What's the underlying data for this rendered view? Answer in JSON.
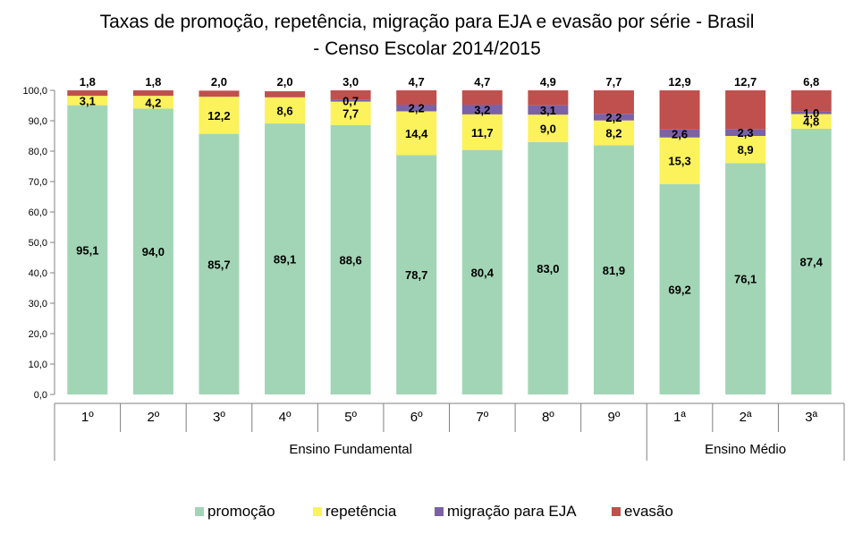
{
  "chart_data": {
    "type": "bar",
    "stacked": true,
    "title_lines": [
      "Taxas de promoção, repetência, migração para EJA e evasão por série - Brasil",
      "- Censo Escolar 2014/2015"
    ],
    "ylim": [
      0,
      100
    ],
    "yticks": [
      "0,0",
      "10,0",
      "20,0",
      "30,0",
      "40,0",
      "50,0",
      "60,0",
      "70,0",
      "80,0",
      "90,0",
      "100,0"
    ],
    "categories": [
      "1º",
      "2º",
      "3º",
      "4º",
      "5º",
      "6º",
      "7º",
      "8º",
      "9º",
      "1ª",
      "2ª",
      "3ª"
    ],
    "groups": [
      {
        "label": "Ensino Fundamental",
        "start": 0,
        "end": 8
      },
      {
        "label": "Ensino Médio",
        "start": 9,
        "end": 11
      }
    ],
    "legend_position": "bottom",
    "series": [
      {
        "name": "promoção",
        "color": "#a2d5b6",
        "values": [
          95.1,
          94.0,
          85.7,
          89.1,
          88.6,
          78.7,
          80.4,
          83.0,
          81.9,
          69.2,
          76.1,
          87.4
        ],
        "labels": [
          "95,1",
          "94,0",
          "85,7",
          "89,1",
          "88,6",
          "78,7",
          "80,4",
          "83,0",
          "81,9",
          "69,2",
          "76,1",
          "87,4"
        ]
      },
      {
        "name": "repetência",
        "color": "#fbf25c",
        "values": [
          3.1,
          4.2,
          12.2,
          8.6,
          7.7,
          14.4,
          11.7,
          9.0,
          8.2,
          15.3,
          8.9,
          4.8
        ],
        "labels": [
          "3,1",
          "4,2",
          "12,2",
          "8,6",
          "7,7",
          "14,4",
          "11,7",
          "9,0",
          "8,2",
          "15,3",
          "8,9",
          "4,8"
        ]
      },
      {
        "name": "migração para EJA",
        "color": "#7c61a6",
        "values": [
          0,
          0,
          0,
          0,
          0.7,
          2.2,
          3.2,
          3.1,
          2.2,
          2.6,
          2.3,
          1.0
        ],
        "labels": [
          "",
          "",
          "",
          "",
          "0,7",
          "2,2",
          "3,2",
          "3,1",
          "2,2",
          "2,6",
          "2,3",
          "1,0"
        ]
      },
      {
        "name": "evasão",
        "color": "#c0504d",
        "values": [
          1.8,
          1.8,
          2.0,
          2.0,
          3.0,
          4.7,
          4.7,
          4.9,
          7.7,
          12.9,
          12.7,
          6.8
        ],
        "labels": [
          "1,8",
          "1,8",
          "2,0",
          "2,0",
          "3,0",
          "4,7",
          "4,7",
          "4,9",
          "7,7",
          "12,9",
          "12,7",
          "6,8"
        ]
      }
    ]
  }
}
